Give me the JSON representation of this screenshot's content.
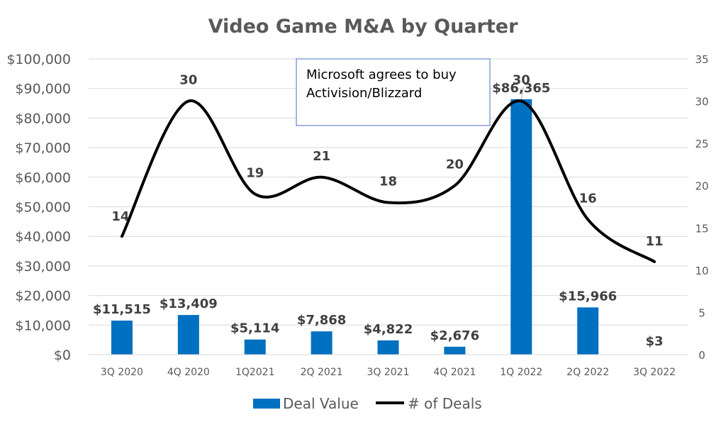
{
  "chart_data": {
    "type": "bar",
    "title": "Video Game M&A by Quarter",
    "categories": [
      "3Q 2020",
      "4Q 2020",
      "1Q2021",
      "2Q 2021",
      "3Q 2021",
      "4Q 2021",
      "1Q 2022",
      "2Q 2022",
      "3Q 2022"
    ],
    "series": [
      {
        "name": "Deal Value",
        "type": "bar",
        "axis": "left",
        "color": "#0070C0",
        "values": [
          11515,
          13409,
          5114,
          7868,
          4822,
          2676,
          86365,
          15966,
          3
        ],
        "labels": [
          "$11,515",
          "$13,409",
          "$5,114",
          "$7,868",
          "$4,822",
          "$2,676",
          "$86,365",
          "$15,966",
          "$3"
        ]
      },
      {
        "name": "# of Deals",
        "type": "line",
        "axis": "right",
        "color": "#000000",
        "values": [
          14,
          30,
          19,
          21,
          18,
          20,
          30,
          16,
          11
        ],
        "labels": [
          "14",
          "30",
          "19",
          "21",
          "18",
          "20",
          "30",
          "16",
          "11"
        ]
      }
    ],
    "y_left": {
      "ylim": [
        0,
        100000
      ],
      "ticks": [
        0,
        10000,
        20000,
        30000,
        40000,
        50000,
        60000,
        70000,
        80000,
        90000,
        100000
      ],
      "tick_labels": [
        "$0",
        "$10,000",
        "$20,000",
        "$30,000",
        "$40,000",
        "$50,000",
        "$60,000",
        "$70,000",
        "$80,000",
        "$90,000",
        "$100,000"
      ]
    },
    "y_right": {
      "ylim": [
        0,
        35
      ],
      "ticks": [
        0,
        5,
        10,
        15,
        20,
        25,
        30,
        35
      ],
      "tick_labels": [
        "0",
        "5",
        "10",
        "15",
        "20",
        "25",
        "30",
        "35"
      ]
    },
    "grid": true,
    "legend": "bottom",
    "annotation": {
      "text_lines": [
        "Microsoft agrees to buy",
        "Activision/Blizzard"
      ],
      "border_color": "#4472C4",
      "points_to": "1Q 2022"
    }
  }
}
